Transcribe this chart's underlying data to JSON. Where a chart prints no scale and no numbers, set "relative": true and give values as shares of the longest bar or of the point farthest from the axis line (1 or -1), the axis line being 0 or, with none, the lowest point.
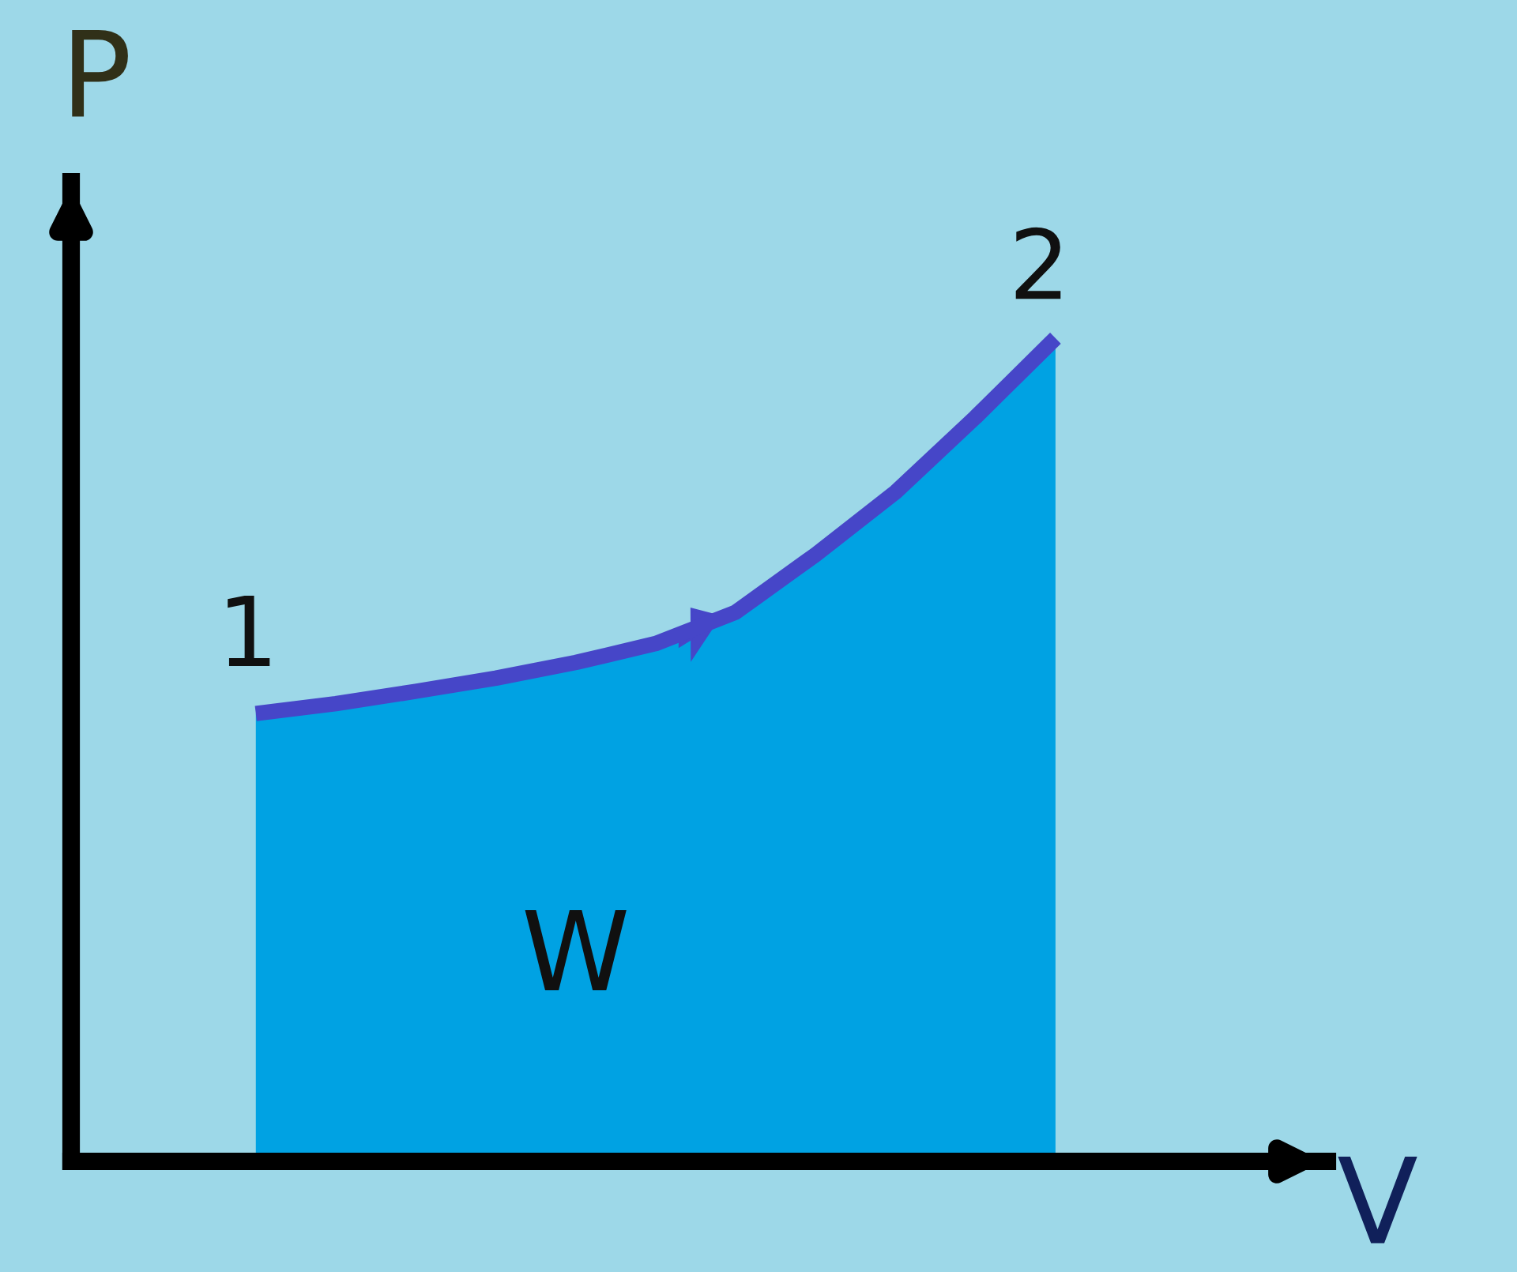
{
  "chart_data": {
    "type": "area",
    "relative": true,
    "xlabel": "V",
    "ylabel": "P",
    "categories": [
      null,
      null,
      null,
      null,
      null,
      null,
      null,
      null,
      null,
      null,
      null
    ],
    "series": [
      {
        "color": "#00a2e3",
        "values": [
          0.544,
          0.556,
          0.571,
          0.587,
          0.606,
          0.629,
          0.667,
          0.737,
          0.813,
          0.904,
          1.0
        ]
      }
    ],
    "annotations": [
      "1",
      "2",
      "W"
    ]
  }
}
